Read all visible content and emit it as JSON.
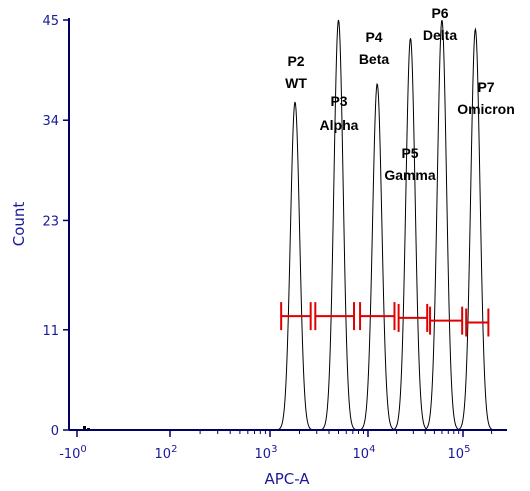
{
  "chart_data": {
    "type": "histogram",
    "title": "",
    "xlabel": "APC-A",
    "ylabel": "Count",
    "x_scale": "biexponential",
    "x_ticks": [
      {
        "label": "-10",
        "exp": "0",
        "value": -1
      },
      {
        "label": "10",
        "exp": "2",
        "value": 100
      },
      {
        "label": "10",
        "exp": "3",
        "value": 1000
      },
      {
        "label": "10",
        "exp": "4",
        "value": 10000
      },
      {
        "label": "10",
        "exp": "5",
        "value": 100000
      }
    ],
    "ylim": [
      0,
      45
    ],
    "y_ticks": [
      "0",
      "11",
      "23",
      "34",
      "45"
    ],
    "grid": false,
    "peaks": [
      {
        "name": "P2",
        "label": "WT",
        "center": 1800,
        "height": 36
      },
      {
        "name": "P3",
        "label": "Alpha",
        "center": 5000,
        "height": 45
      },
      {
        "name": "P4",
        "label": "Beta",
        "center": 12500,
        "height": 38
      },
      {
        "name": "P5",
        "label": "Gamma",
        "center": 28000,
        "height": 43
      },
      {
        "name": "P6",
        "label": "Delta",
        "center": 60000,
        "height": 45
      },
      {
        "name": "P7",
        "label": "Omicron",
        "center": 135000,
        "height": 44
      }
    ],
    "gates": [
      {
        "name": "P2",
        "start": 1300,
        "end": 2600,
        "level": 12.5
      },
      {
        "name": "P3",
        "start": 2900,
        "end": 7200,
        "level": 12.5
      },
      {
        "name": "P4",
        "start": 8300,
        "end": 19000,
        "level": 12.5
      },
      {
        "name": "P5",
        "start": 21000,
        "end": 42000,
        "level": 12.3
      },
      {
        "name": "P6",
        "start": 45000,
        "end": 98000,
        "level": 12.0
      },
      {
        "name": "P7",
        "start": 108000,
        "end": 185000,
        "level": 11.8
      }
    ],
    "colors": {
      "axis": "#000066",
      "tick_text": "#1a1a99",
      "gate": "#e00000",
      "histogram": "#000000"
    }
  }
}
